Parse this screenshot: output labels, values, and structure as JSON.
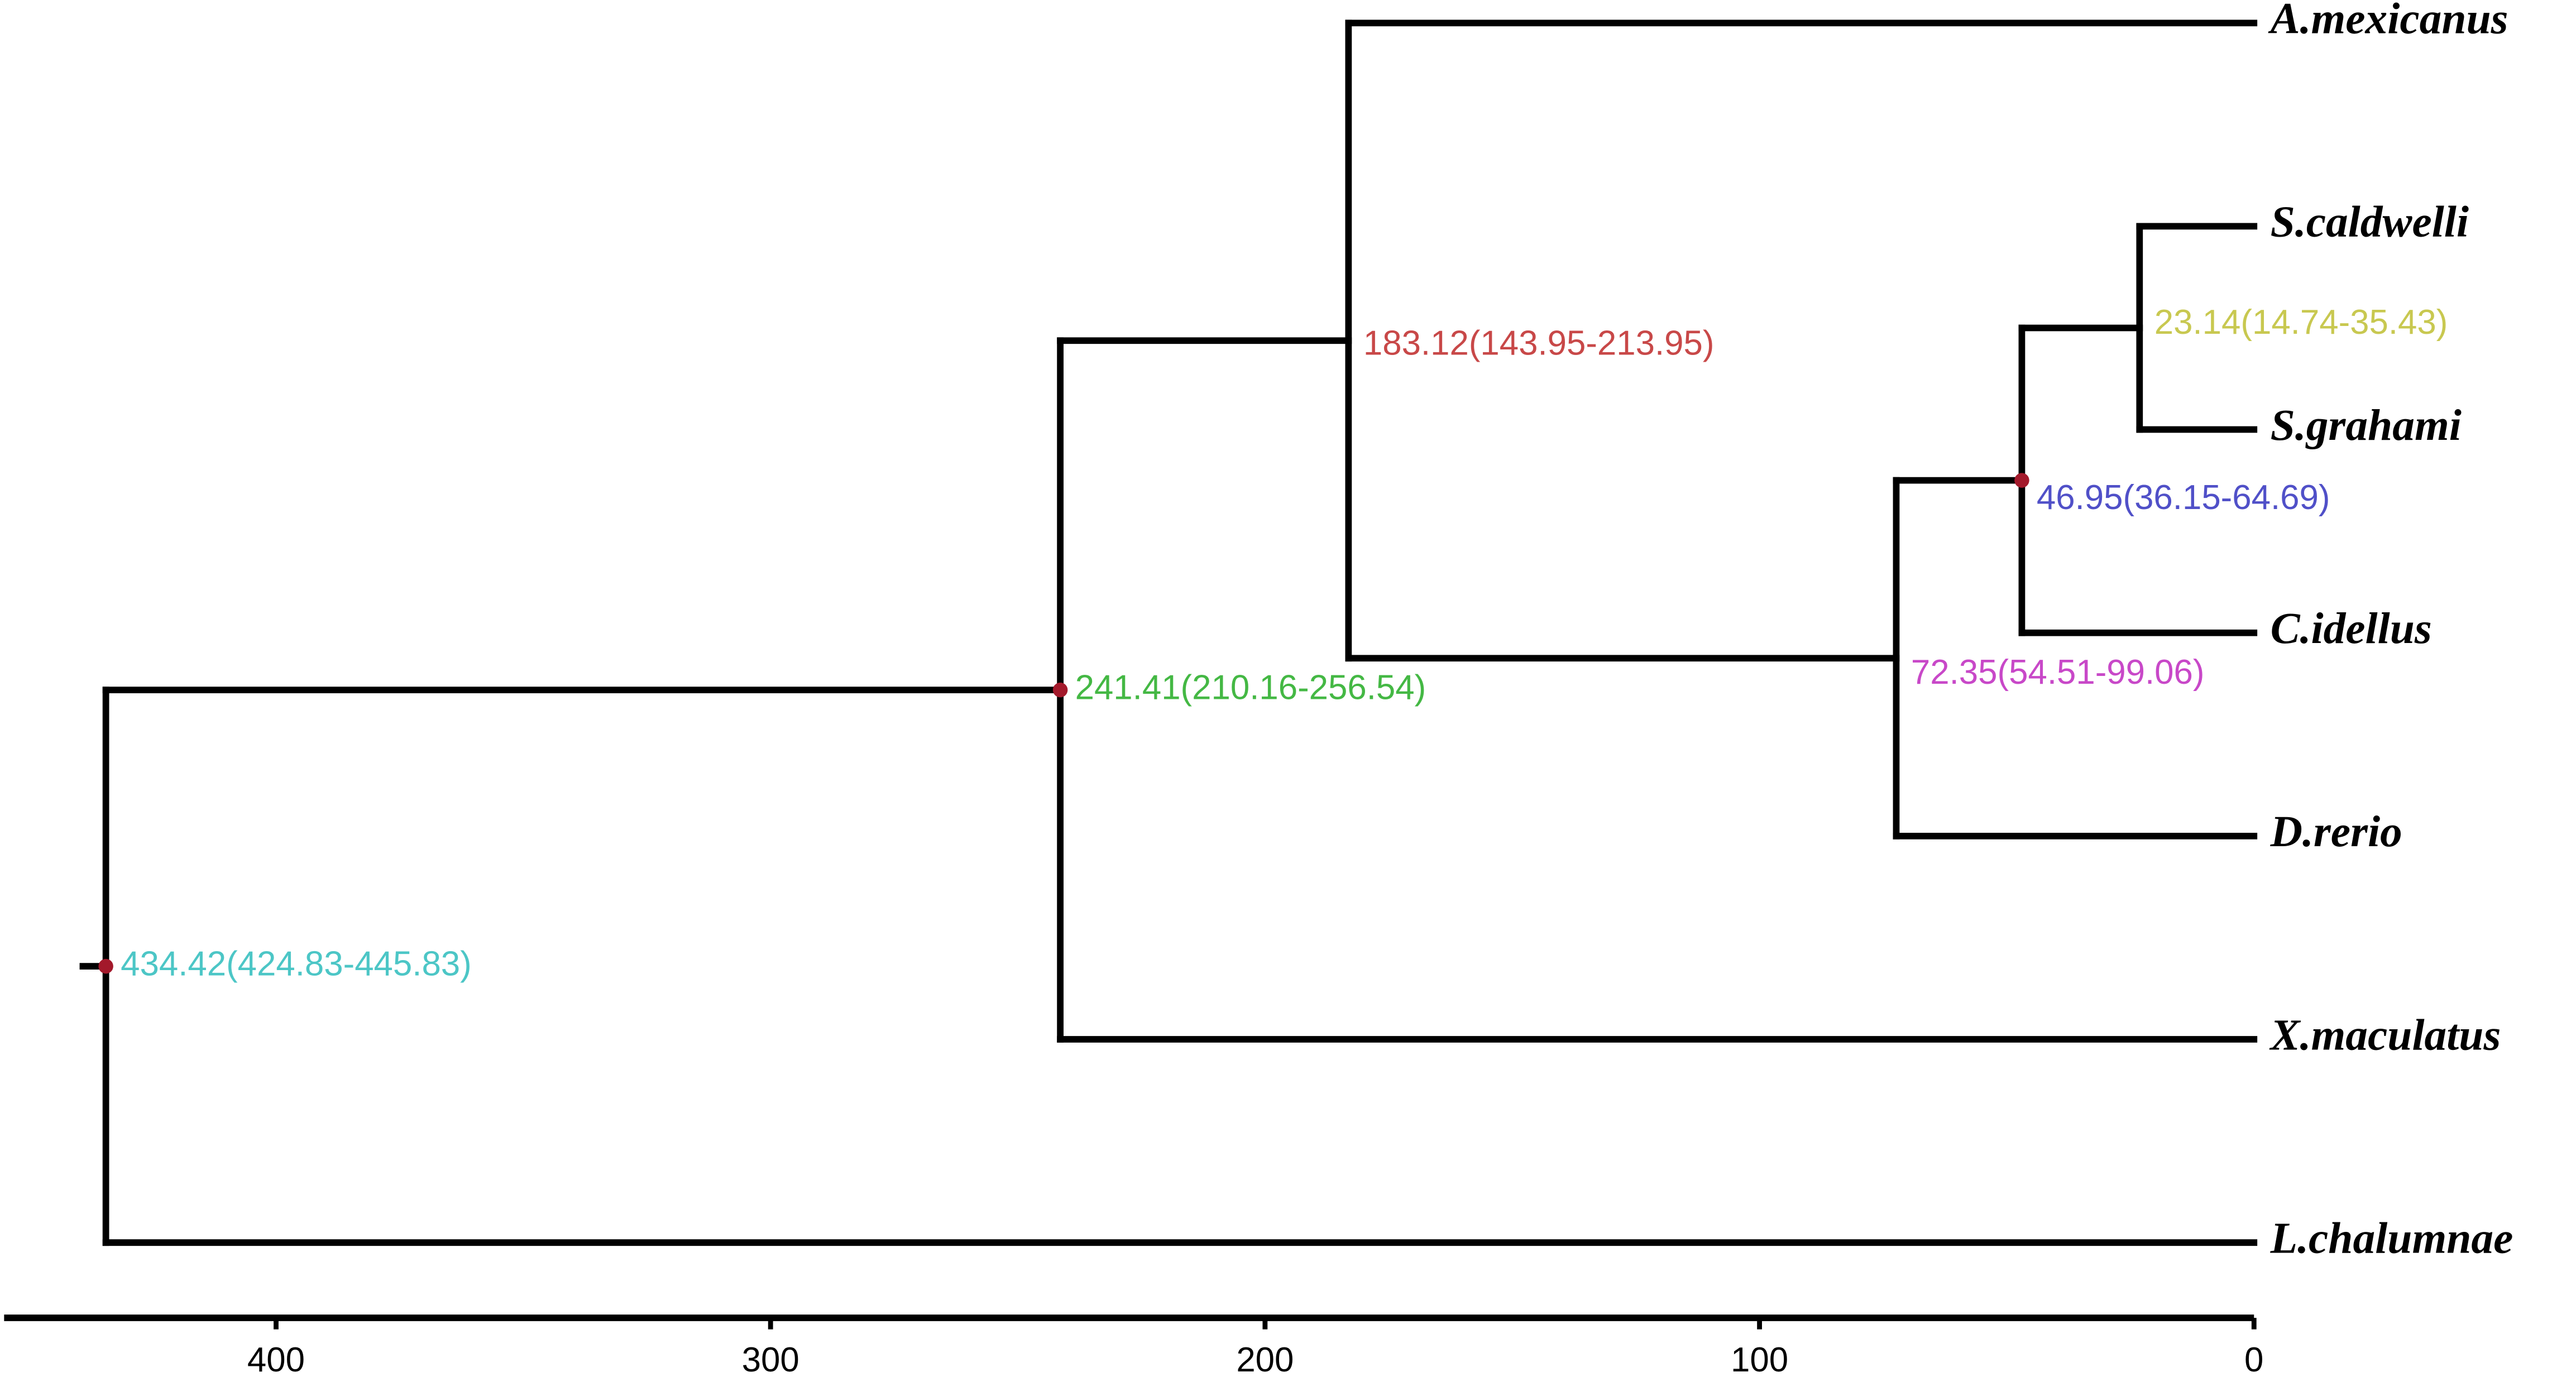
{
  "axis": {
    "xlim": [
      455,
      0
    ],
    "xticks": [
      400,
      300,
      200,
      100,
      0
    ]
  },
  "tree": {
    "age": 434.42,
    "label": "434.42(424.83-445.83)",
    "color": "#4cc6c6",
    "dot": true,
    "children": [
      {
        "age": 241.41,
        "label": "241.41(210.16-256.54)",
        "color": "#44b844",
        "dot": true,
        "children": [
          {
            "age": 183.12,
            "label": "183.12(143.95-213.95)",
            "color": "#c84848",
            "dot": false,
            "children": [
              {
                "name": "A.mexicanus"
              },
              {
                "age": 72.35,
                "label": "72.35(54.51-99.06)",
                "color": "#c848c8",
                "dot": false,
                "children": [
                  {
                    "age": 46.95,
                    "label": "46.95(36.15-64.69)",
                    "color": "#5050c8",
                    "dot": true,
                    "children": [
                      {
                        "age": 23.14,
                        "label": "23.14(14.74-35.43)",
                        "color": "#c8c850",
                        "dot": false,
                        "children": [
                          {
                            "name": "S.caldwelli"
                          },
                          {
                            "name": "S.grahami"
                          }
                        ]
                      },
                      {
                        "name": "C.idellus"
                      }
                    ]
                  },
                  {
                    "name": "D.rerio"
                  }
                ]
              }
            ]
          },
          {
            "name": "X.maculatus"
          }
        ]
      },
      {
        "name": "L.chalumnae"
      }
    ]
  }
}
